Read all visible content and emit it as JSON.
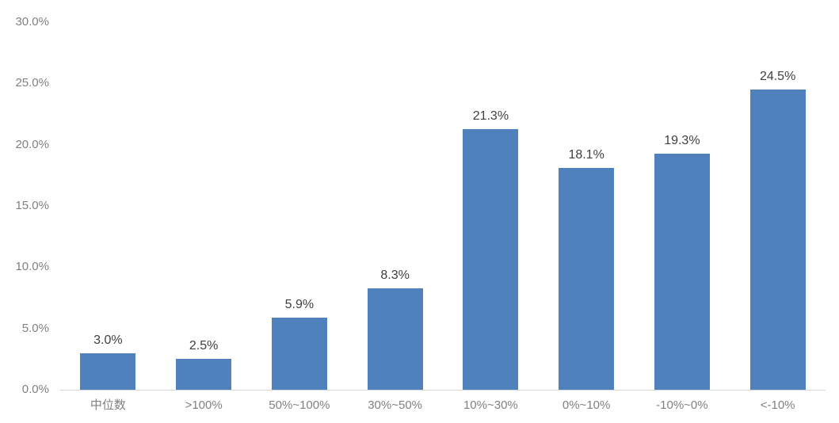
{
  "chart_data": {
    "type": "bar",
    "categories": [
      "中位数",
      ">100%",
      "50%~100%",
      "30%~50%",
      "10%~30%",
      "0%~10%",
      "-10%~0%",
      "<-10%"
    ],
    "values": [
      3.0,
      2.5,
      5.9,
      8.3,
      21.3,
      18.1,
      19.3,
      24.5
    ],
    "data_labels": [
      "3.0%",
      "2.5%",
      "5.9%",
      "8.3%",
      "21.3%",
      "18.1%",
      "19.3%",
      "24.5%"
    ],
    "y_ticks": [
      "0.0%",
      "5.0%",
      "10.0%",
      "15.0%",
      "20.0%",
      "25.0%",
      "30.0%"
    ],
    "ylim": [
      0,
      30
    ],
    "grid": false,
    "legend": false,
    "bar_color": "#4f81bd",
    "axis_label_color": "#808080",
    "data_label_color": "#404040",
    "baseline_color": "#d6d6d6"
  }
}
